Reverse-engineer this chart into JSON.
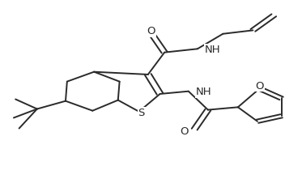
{
  "bg_color": "#ffffff",
  "line_color": "#2a2a2a",
  "line_width": 1.4,
  "font_size": 9,
  "figure_bg": "#ffffff",
  "xlim": [
    0,
    1
  ],
  "ylim": [
    0,
    1
  ]
}
